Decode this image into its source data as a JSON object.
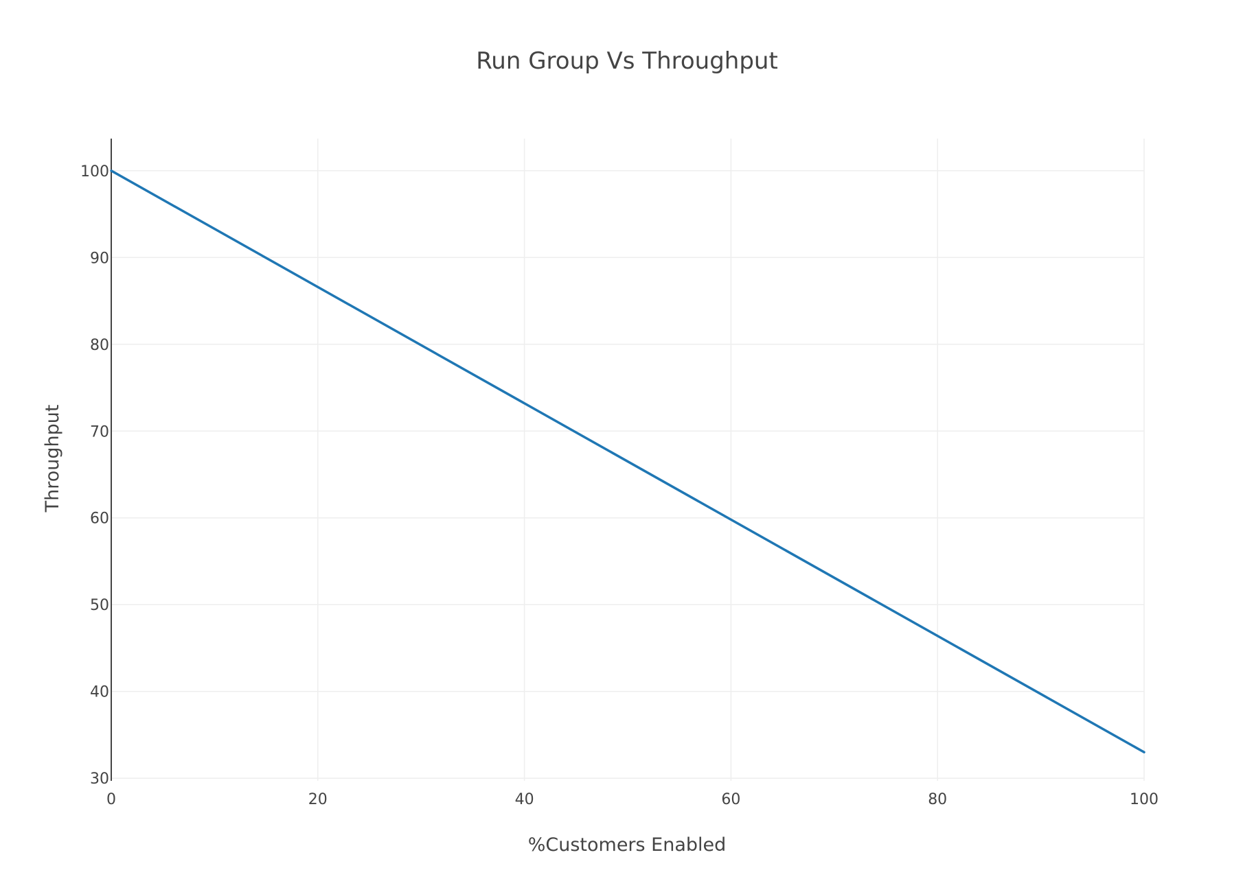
{
  "chart_data": {
    "type": "line",
    "title": "Run Group Vs Throughput",
    "xlabel": "%Customers Enabled",
    "ylabel": "Throughput",
    "xlim": [
      0,
      100
    ],
    "ylim": [
      29.7,
      103.7
    ],
    "x_ticks": [
      0,
      20,
      40,
      60,
      80,
      100
    ],
    "y_ticks": [
      30,
      40,
      50,
      60,
      70,
      80,
      90,
      100
    ],
    "grid": true,
    "legend": "none",
    "series": [
      {
        "x": [
          0,
          100
        ],
        "values": [
          100,
          33
        ],
        "color": "#1f77b4"
      }
    ]
  }
}
